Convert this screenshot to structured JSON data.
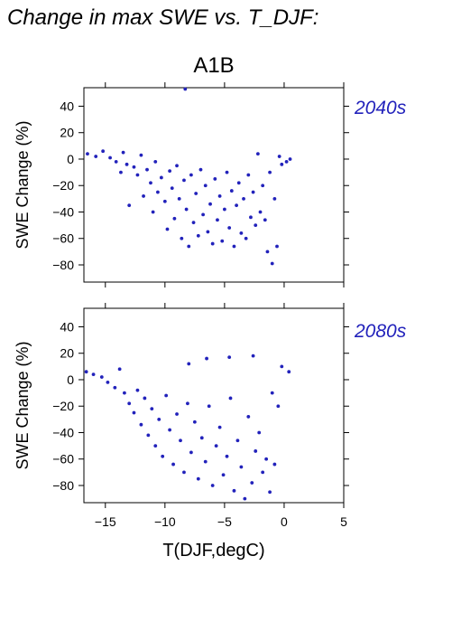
{
  "figure": {
    "title": "Change in max SWE vs. T_DJF:",
    "scenario": "A1B",
    "xlabel": "T(DJF,degC)",
    "accent_color": "#2222bb"
  },
  "chart_data": [
    {
      "type": "scatter",
      "period_label": "2040s",
      "ylabel": "SWE Change (%)",
      "xlim": [
        -16.8,
        5.0
      ],
      "ylim": [
        -93,
        54
      ],
      "x_ticks": [
        -15,
        -10,
        -5,
        0,
        5
      ],
      "y_ticks": [
        -80,
        -60,
        -40,
        -20,
        0,
        20,
        40
      ],
      "grid": false,
      "series": [
        {
          "color": "#2222bb",
          "points": [
            [
              -16.5,
              4
            ],
            [
              -15.8,
              2
            ],
            [
              -15.2,
              6
            ],
            [
              -14.6,
              1
            ],
            [
              -14.1,
              -2
            ],
            [
              -13.7,
              -10
            ],
            [
              -13.5,
              5
            ],
            [
              -13.2,
              -4
            ],
            [
              -13.0,
              -35
            ],
            [
              -12.6,
              -6
            ],
            [
              -12.3,
              -12
            ],
            [
              -12.0,
              3
            ],
            [
              -11.8,
              -28
            ],
            [
              -11.5,
              -8
            ],
            [
              -11.2,
              -18
            ],
            [
              -11.0,
              -40
            ],
            [
              -10.8,
              -2
            ],
            [
              -10.6,
              -25
            ],
            [
              -10.3,
              -14
            ],
            [
              -10.0,
              -32
            ],
            [
              -9.8,
              -53
            ],
            [
              -9.6,
              -9
            ],
            [
              -9.4,
              -22
            ],
            [
              -9.2,
              -45
            ],
            [
              -9.0,
              -5
            ],
            [
              -8.8,
              -30
            ],
            [
              -8.6,
              -60
            ],
            [
              -8.4,
              -16
            ],
            [
              -8.3,
              53
            ],
            [
              -8.2,
              -38
            ],
            [
              -8.0,
              -66
            ],
            [
              -7.8,
              -12
            ],
            [
              -7.6,
              -48
            ],
            [
              -7.4,
              -26
            ],
            [
              -7.2,
              -58
            ],
            [
              -7.0,
              -8
            ],
            [
              -6.8,
              -42
            ],
            [
              -6.6,
              -20
            ],
            [
              -6.4,
              -55
            ],
            [
              -6.2,
              -34
            ],
            [
              -6.0,
              -64
            ],
            [
              -5.8,
              -15
            ],
            [
              -5.6,
              -46
            ],
            [
              -5.4,
              -28
            ],
            [
              -5.2,
              -62
            ],
            [
              -5.0,
              -38
            ],
            [
              -4.8,
              -10
            ],
            [
              -4.6,
              -52
            ],
            [
              -4.4,
              -24
            ],
            [
              -4.2,
              -66
            ],
            [
              -4.0,
              -35
            ],
            [
              -3.8,
              -18
            ],
            [
              -3.6,
              -56
            ],
            [
              -3.4,
              -30
            ],
            [
              -3.2,
              -60
            ],
            [
              -3.0,
              -12
            ],
            [
              -2.8,
              -44
            ],
            [
              -2.6,
              -25
            ],
            [
              -2.4,
              -50
            ],
            [
              -2.2,
              4
            ],
            [
              -2.0,
              -40
            ],
            [
              -1.8,
              -20
            ],
            [
              -1.6,
              -46
            ],
            [
              -1.4,
              -70
            ],
            [
              -1.2,
              -10
            ],
            [
              -1.0,
              -79
            ],
            [
              -0.8,
              -30
            ],
            [
              -0.6,
              -66
            ],
            [
              -0.4,
              2
            ],
            [
              -0.2,
              -4
            ],
            [
              0.2,
              -2
            ],
            [
              0.5,
              0
            ]
          ]
        }
      ]
    },
    {
      "type": "scatter",
      "period_label": "2080s",
      "ylabel": "SWE Change (%)",
      "xlim": [
        -16.8,
        5.0
      ],
      "ylim": [
        -93,
        54
      ],
      "x_ticks": [
        -15,
        -10,
        -5,
        0,
        5
      ],
      "x_tick_labels": [
        "−15",
        "−10",
        "−5",
        "0",
        "5"
      ],
      "y_ticks": [
        -80,
        -60,
        -40,
        -20,
        0,
        20,
        40
      ],
      "grid": false,
      "series": [
        {
          "color": "#2222bb",
          "points": [
            [
              -16.6,
              6
            ],
            [
              -16.0,
              4
            ],
            [
              -15.3,
              2
            ],
            [
              -14.8,
              -2
            ],
            [
              -14.2,
              -6
            ],
            [
              -13.8,
              8
            ],
            [
              -13.4,
              -10
            ],
            [
              -13.0,
              -18
            ],
            [
              -12.6,
              -25
            ],
            [
              -12.3,
              -8
            ],
            [
              -12.0,
              -34
            ],
            [
              -11.7,
              -14
            ],
            [
              -11.4,
              -42
            ],
            [
              -11.1,
              -22
            ],
            [
              -10.8,
              -50
            ],
            [
              -10.5,
              -30
            ],
            [
              -10.2,
              -58
            ],
            [
              -9.9,
              -12
            ],
            [
              -9.6,
              -38
            ],
            [
              -9.3,
              -64
            ],
            [
              -9.0,
              -26
            ],
            [
              -8.7,
              -46
            ],
            [
              -8.4,
              -70
            ],
            [
              -8.1,
              -18
            ],
            [
              -7.8,
              -55
            ],
            [
              -7.5,
              -32
            ],
            [
              -7.2,
              -75
            ],
            [
              -6.9,
              -44
            ],
            [
              -6.6,
              -62
            ],
            [
              -6.3,
              -20
            ],
            [
              -6.0,
              -80
            ],
            [
              -5.7,
              -50
            ],
            [
              -5.4,
              -36
            ],
            [
              -5.1,
              -72
            ],
            [
              -4.8,
              -58
            ],
            [
              -4.5,
              -14
            ],
            [
              -4.2,
              -84
            ],
            [
              -3.9,
              -46
            ],
            [
              -3.6,
              -66
            ],
            [
              -3.3,
              -90
            ],
            [
              -3.0,
              -28
            ],
            [
              -2.7,
              -78
            ],
            [
              -2.4,
              -54
            ],
            [
              -2.1,
              -40
            ],
            [
              -1.8,
              -70
            ],
            [
              -1.5,
              -60
            ],
            [
              -1.2,
              -85
            ],
            [
              -1.0,
              -10
            ],
            [
              -0.8,
              -64
            ],
            [
              -0.5,
              -20
            ],
            [
              -0.2,
              10
            ],
            [
              0.4,
              6
            ],
            [
              -2.6,
              18
            ],
            [
              -4.6,
              17
            ],
            [
              -6.5,
              16
            ],
            [
              -8.0,
              12
            ]
          ]
        }
      ]
    }
  ]
}
